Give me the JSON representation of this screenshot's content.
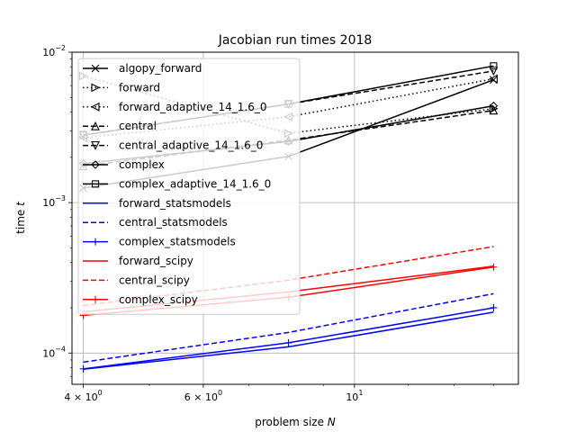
{
  "chart_data": {
    "type": "line",
    "title": "Jacobian run times 2018",
    "xlabel": "problem size N",
    "ylabel": "time t",
    "xscale": "log",
    "yscale": "log",
    "xlim": [
      3.85,
      17.4
    ],
    "ylim": [
      6.2e-05,
      0.01
    ],
    "grid": true,
    "legend_position": "upper-left",
    "x": [
      4,
      8,
      16
    ],
    "x_ticks": [
      {
        "value": 4,
        "label": "4 × 10^0"
      },
      {
        "value": 6,
        "label": "6 × 10^0"
      },
      {
        "value": 10,
        "label": "10^1"
      }
    ],
    "y_ticks": [
      {
        "value": 0.0001,
        "label": "10^-4"
      },
      {
        "value": 0.001,
        "label": "10^-3"
      },
      {
        "value": 0.01,
        "label": "10^-2"
      }
    ],
    "series": [
      {
        "name": "algopy_forward",
        "color": "#000000",
        "linestyle": "solid",
        "marker": "x",
        "values": [
          0.00125,
          0.00203,
          0.00655
        ]
      },
      {
        "name": "forward",
        "color": "#000000",
        "linestyle": "dotted",
        "marker": "tri-right",
        "values": [
          0.00695,
          0.00289,
          0.00421
        ]
      },
      {
        "name": "forward_adaptive_14_1.6_0",
        "color": "#000000",
        "linestyle": "dotted",
        "marker": "tri-left",
        "values": [
          0.0027,
          0.00372,
          0.00665
        ]
      },
      {
        "name": "central",
        "color": "#000000",
        "linestyle": "dashed",
        "marker": "tri-up",
        "values": [
          0.00175,
          0.0026,
          0.0041
        ]
      },
      {
        "name": "central_adaptive_14_1.6_0",
        "color": "#000000",
        "linestyle": "dashed",
        "marker": "tri-down",
        "values": [
          0.00282,
          0.00452,
          0.0075
        ]
      },
      {
        "name": "complex",
        "color": "#000000",
        "linestyle": "solid",
        "marker": "diamond",
        "values": [
          0.00182,
          0.00255,
          0.0044
        ]
      },
      {
        "name": "complex_adaptive_14_1.6_0",
        "color": "#000000",
        "linestyle": "solid",
        "marker": "square",
        "values": [
          0.0028,
          0.00452,
          0.0081
        ]
      },
      {
        "name": "forward_statsmodels",
        "color": "#0000ff",
        "linestyle": "solid",
        "marker": "none",
        "values": [
          7.8e-05,
          0.00011,
          0.000187
        ]
      },
      {
        "name": "central_statsmodels",
        "color": "#0000ff",
        "linestyle": "dashed",
        "marker": "none",
        "values": [
          8.7e-05,
          0.000137,
          0.000248
        ]
      },
      {
        "name": "complex_statsmodels",
        "color": "#0000ff",
        "linestyle": "solid",
        "marker": "plus",
        "values": [
          7.85e-05,
          0.000117,
          0.0002
        ]
      },
      {
        "name": "forward_scipy",
        "color": "#ff0000",
        "linestyle": "solid",
        "marker": "none",
        "values": [
          0.000188,
          0.000255,
          0.000378
        ]
      },
      {
        "name": "central_scipy",
        "color": "#ff0000",
        "linestyle": "dashed",
        "marker": "none",
        "values": [
          0.000207,
          0.000305,
          0.00051
        ]
      },
      {
        "name": "complex_scipy",
        "color": "#ff0000",
        "linestyle": "solid",
        "marker": "plus",
        "values": [
          0.000178,
          0.000235,
          0.000373
        ]
      }
    ]
  }
}
